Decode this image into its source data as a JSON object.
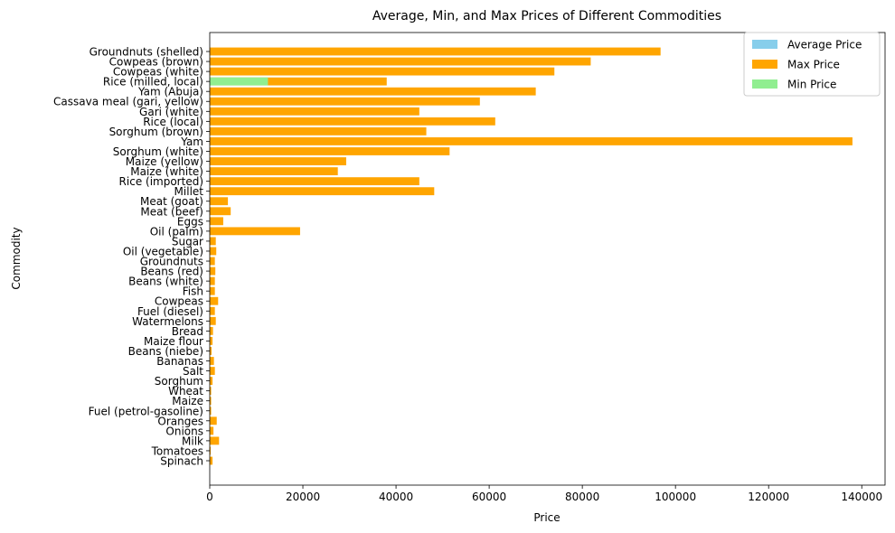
{
  "chart_data": {
    "type": "bar",
    "orientation": "horizontal",
    "title": "Average, Min, and Max Prices of Different Commodities",
    "xlabel": "Price",
    "ylabel": "Commodity",
    "xlim": [
      0,
      145000
    ],
    "xticks": [
      0,
      20000,
      40000,
      60000,
      80000,
      100000,
      120000,
      140000
    ],
    "grid": false,
    "legend_position": "upper right",
    "categories": [
      "Groundnuts (shelled)",
      "Cowpeas (brown)",
      "Cowpeas (white)",
      "Rice (milled, local)",
      "Yam (Abuja)",
      "Cassava meal (gari, yellow)",
      "Gari (white)",
      "Rice (local)",
      "Sorghum (brown)",
      "Yam",
      "Sorghum (white)",
      "Maize (yellow)",
      "Maize (white)",
      "Rice (imported)",
      "Millet",
      "Meat (goat)",
      "Meat (beef)",
      "Eggs",
      "Oil (palm)",
      "Sugar",
      "Oil (vegetable)",
      "Groundnuts",
      "Beans (red)",
      "Beans (white)",
      "Fish",
      "Cowpeas",
      "Fuel (diesel)",
      "Watermelons",
      "Bread",
      "Maize flour",
      "Beans (niebe)",
      "Bananas",
      "Salt",
      "Sorghum",
      "Wheat",
      "Maize",
      "Fuel (petrol-gasoline)",
      "Oranges",
      "Onions",
      "Milk",
      "Tomatoes",
      "Spinach"
    ],
    "series": [
      {
        "name": "Average Price",
        "color": "#87ceeb",
        "values": [
          null,
          null,
          null,
          null,
          null,
          null,
          null,
          null,
          null,
          null,
          null,
          null,
          null,
          null,
          null,
          null,
          null,
          null,
          null,
          null,
          null,
          null,
          null,
          null,
          null,
          null,
          null,
          null,
          null,
          null,
          null,
          null,
          null,
          null,
          null,
          null,
          null,
          null,
          null,
          null,
          null,
          null
        ]
      },
      {
        "name": "Max Price",
        "color": "#ffa500",
        "values": [
          96800,
          81800,
          74000,
          38000,
          70000,
          58000,
          45000,
          61300,
          46500,
          138000,
          51500,
          29300,
          27500,
          45000,
          48200,
          3900,
          4500,
          2900,
          19400,
          1300,
          1400,
          1100,
          1200,
          1100,
          1100,
          1800,
          1100,
          1300,
          700,
          600,
          400,
          900,
          1100,
          600,
          300,
          300,
          300,
          1500,
          800,
          2000,
          200,
          600
        ]
      },
      {
        "name": "Min Price",
        "color": "#90ee90",
        "values": [
          null,
          null,
          null,
          12500,
          null,
          null,
          null,
          null,
          null,
          null,
          null,
          null,
          null,
          null,
          null,
          null,
          null,
          null,
          null,
          null,
          null,
          null,
          null,
          null,
          null,
          null,
          null,
          null,
          null,
          null,
          null,
          null,
          null,
          null,
          null,
          null,
          null,
          null,
          null,
          null,
          null,
          null
        ]
      }
    ]
  }
}
